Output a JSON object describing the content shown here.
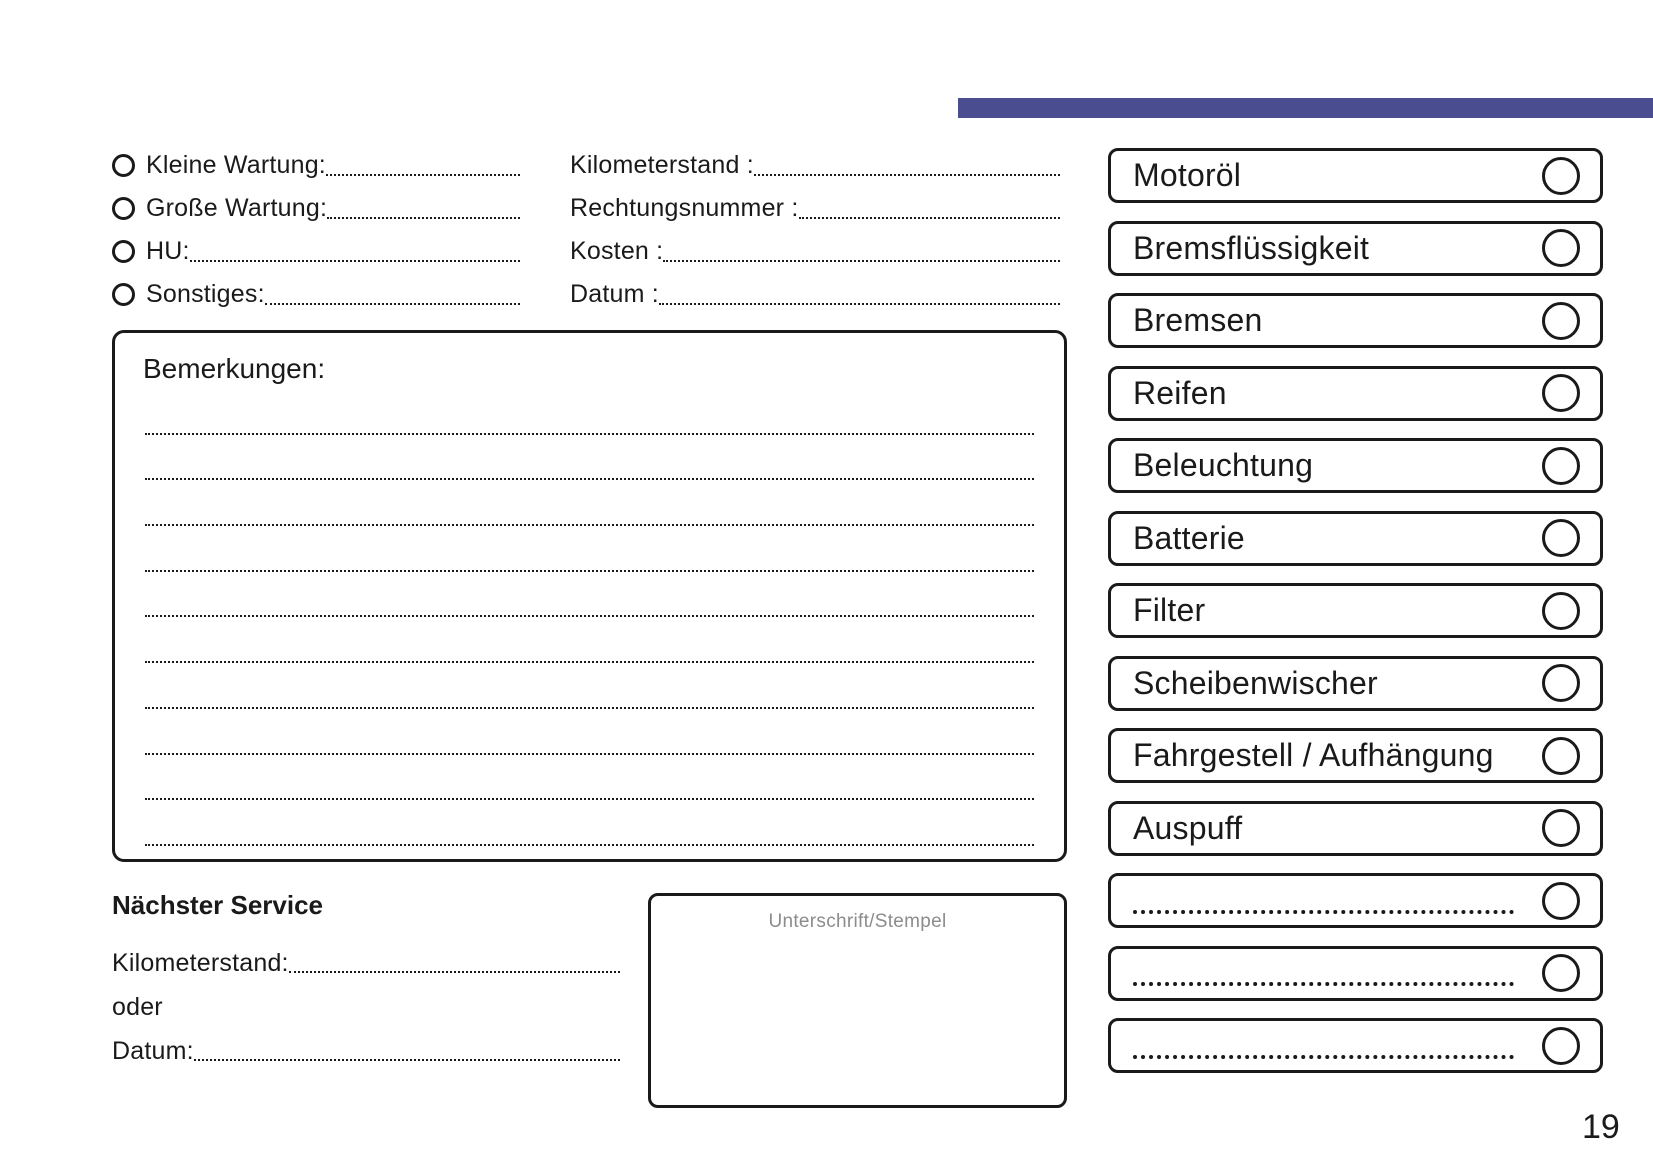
{
  "accent_bar": {
    "color": "#4a4e91"
  },
  "service_types": [
    {
      "label": "Kleine Wartung:"
    },
    {
      "label": "Große Wartung:"
    },
    {
      "label": "HU:"
    },
    {
      "label": "Sonstiges:"
    }
  ],
  "invoice_fields": [
    {
      "label": "Kilometerstand :"
    },
    {
      "label": "Rechtungsnummer :"
    },
    {
      "label": "Kosten :"
    },
    {
      "label": "Datum :"
    }
  ],
  "remarks": {
    "title": "Bemerkungen:",
    "line_count": 10
  },
  "next_service": {
    "title": "Nächster Service",
    "fields": [
      {
        "label": "Kilometerstand:",
        "dotted": true
      },
      {
        "label": "oder",
        "dotted": false
      },
      {
        "label": "Datum:",
        "dotted": true
      }
    ]
  },
  "signature": {
    "label": "Unterschrift/Stempel",
    "color": "#8c8c8c"
  },
  "checklist": [
    {
      "label": "Motoröl",
      "dotted": false
    },
    {
      "label": "Bremsflüssigkeit",
      "dotted": false
    },
    {
      "label": "Bremsen",
      "dotted": false
    },
    {
      "label": "Reifen",
      "dotted": false
    },
    {
      "label": "Beleuchtung",
      "dotted": false
    },
    {
      "label": "Batterie",
      "dotted": false
    },
    {
      "label": "Filter",
      "dotted": false
    },
    {
      "label": "Scheibenwischer",
      "dotted": false
    },
    {
      "label": "Fahrgestell / Aufhängung",
      "dotted": false
    },
    {
      "label": "Auspuff",
      "dotted": false
    },
    {
      "label": "",
      "dotted": true
    },
    {
      "label": "",
      "dotted": true
    },
    {
      "label": "",
      "dotted": true
    }
  ],
  "page": {
    "number": "19"
  }
}
